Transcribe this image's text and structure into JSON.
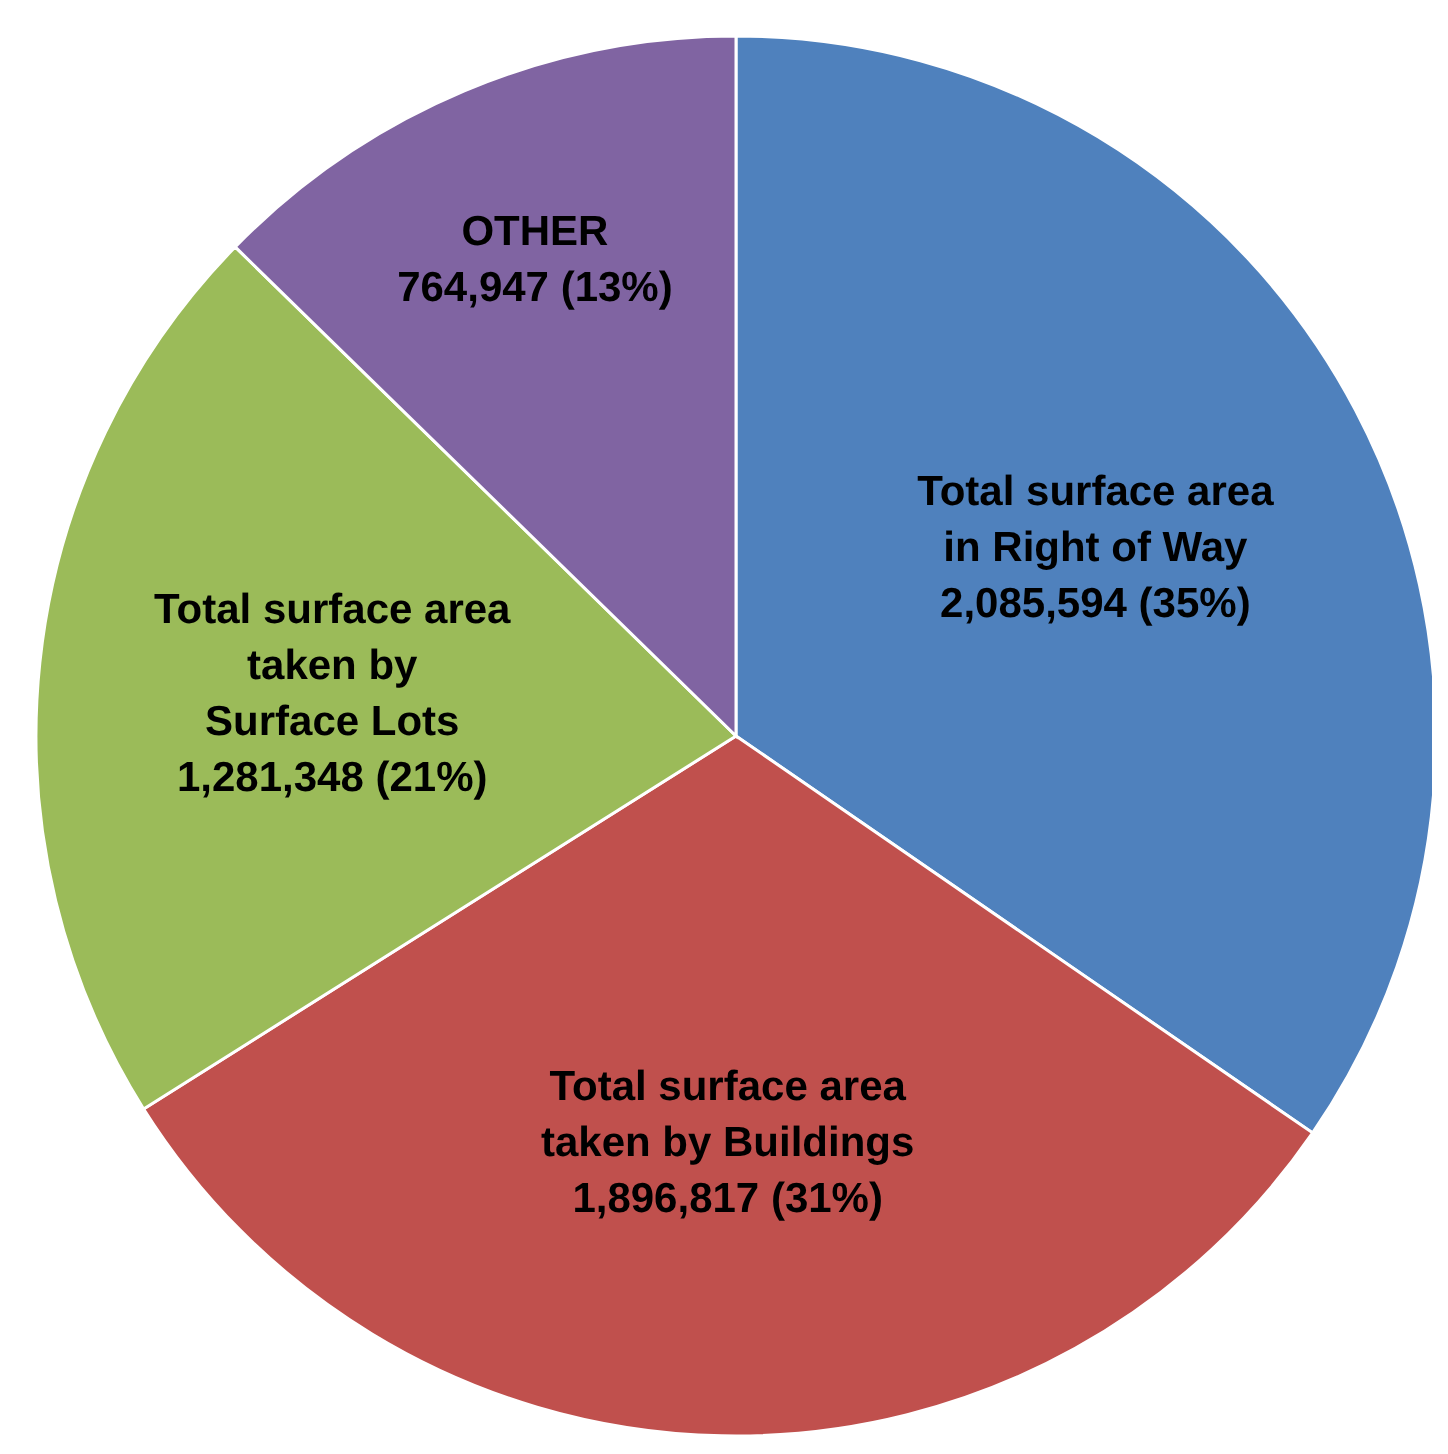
{
  "chart_data": {
    "type": "pie",
    "categories": [
      "Total surface area\nin Right of Way",
      "Total surface area\ntaken by Buildings",
      "Total surface area\ntaken by\nSurface Lots",
      "OTHER"
    ],
    "values": [
      2085594,
      1896817,
      1281348,
      764947
    ],
    "value_labels": [
      "2,085,594  (35%)",
      "1,896,817  (31%)",
      "1,281,348  (21%)",
      "764,947  (13%)"
    ],
    "colors": [
      "#4f81bd",
      "#c0504d",
      "#9bbb59",
      "#8064a2"
    ]
  }
}
